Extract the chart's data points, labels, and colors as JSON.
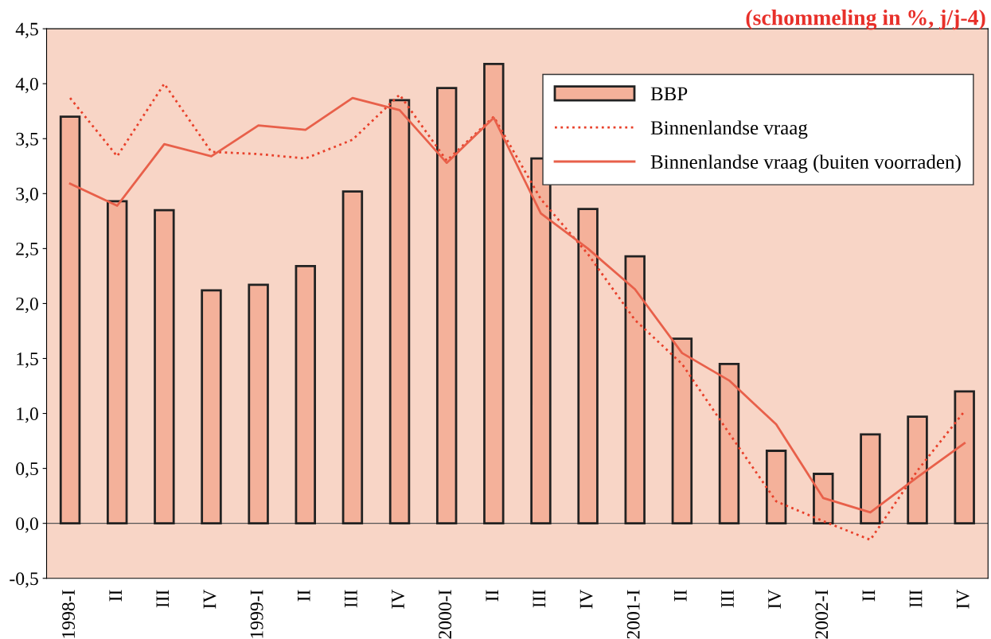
{
  "chart_data": {
    "type": "bar",
    "title": "(schommeling in %, j/j-4)",
    "categories": [
      "1998-I",
      "II",
      "III",
      "IV",
      "1999-I",
      "II",
      "III",
      "IV",
      "2000-I",
      "II",
      "III",
      "IV",
      "2001-I",
      "II",
      "III",
      "IV",
      "2002-I",
      "II",
      "III",
      "IV"
    ],
    "series": [
      {
        "name": "BBP",
        "color": "#f4b19a",
        "values": [
          3.7,
          2.93,
          2.85,
          2.12,
          2.17,
          2.34,
          3.02,
          3.85,
          3.96,
          4.18,
          3.32,
          2.86,
          2.43,
          1.68,
          1.45,
          0.66,
          0.45,
          0.81,
          0.97,
          1.2
        ]
      },
      {
        "name": "Binnenlandse vraag",
        "type": "line",
        "line_style": "dotted",
        "color": "#e8402a",
        "values": [
          3.87,
          3.34,
          4.0,
          3.38,
          3.36,
          3.32,
          3.49,
          3.9,
          3.3,
          3.7,
          2.95,
          2.45,
          1.85,
          1.45,
          0.82,
          0.2,
          0.02,
          -0.15,
          0.48,
          1.02
        ]
      },
      {
        "name": "Binnenlandse vraag (buiten voorraden)",
        "type": "line",
        "line_style": "solid",
        "color": "#e8604a",
        "values": [
          3.09,
          2.89,
          3.45,
          3.34,
          3.62,
          3.58,
          3.87,
          3.76,
          3.28,
          3.69,
          2.82,
          2.5,
          2.13,
          1.55,
          1.3,
          0.9,
          0.23,
          0.1,
          0.42,
          0.73
        ]
      }
    ],
    "ylim": [
      -0.5,
      4.5
    ],
    "yticks": [
      {
        "value": -0.5,
        "label": "-0,5"
      },
      {
        "value": 0,
        "label": "0,0"
      },
      {
        "value": 0.5,
        "label": "0,5"
      },
      {
        "value": 1,
        "label": "1,0"
      },
      {
        "value": 1.5,
        "label": "1,5"
      },
      {
        "value": 2,
        "label": "2,0"
      },
      {
        "value": 2.5,
        "label": "2,5"
      },
      {
        "value": 3,
        "label": "3,0"
      },
      {
        "value": 3.5,
        "label": "3,5"
      },
      {
        "value": 4,
        "label": "4,0"
      },
      {
        "value": 4.5,
        "label": "4,5"
      }
    ],
    "ref_lines": [
      {
        "axis": "y",
        "value": 0,
        "color": "#555555"
      }
    ],
    "legend": "top right",
    "grid": false
  }
}
